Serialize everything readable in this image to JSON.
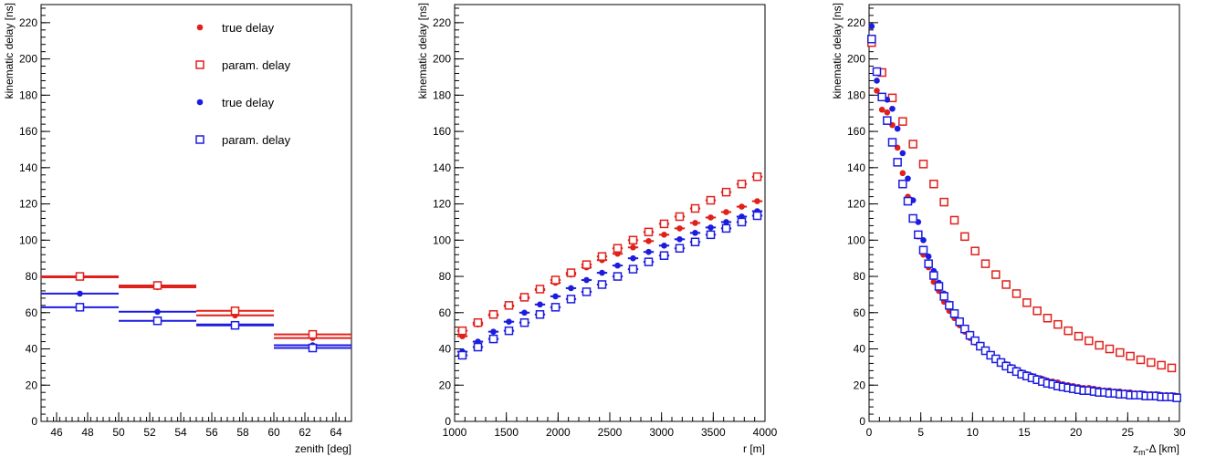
{
  "chart_data": [
    {
      "type": "scatter",
      "xlabel": "zenith [deg]",
      "ylabel": "kinematic delay [ns]",
      "xlim": [
        45,
        65
      ],
      "ylim": [
        0,
        230
      ],
      "xticks": [
        46,
        48,
        50,
        52,
        54,
        56,
        58,
        60,
        62,
        64
      ],
      "yticks": [
        0,
        20,
        40,
        60,
        80,
        100,
        120,
        140,
        160,
        180,
        200,
        220
      ],
      "grid": false,
      "legend_position": "top-right",
      "legend": [
        {
          "label": "true delay",
          "color": "#e0201b",
          "marker": "circle"
        },
        {
          "label": "param. delay",
          "color": "#e0201b",
          "marker": "open-square"
        },
        {
          "label": "true delay",
          "color": "#1c1ce0",
          "marker": "circle"
        },
        {
          "label": "param. delay",
          "color": "#1c1ce0",
          "marker": "open-square"
        }
      ],
      "series": [
        {
          "color": "#e0201b",
          "marker": "circle",
          "x": [
            47.5,
            52.5,
            57.5,
            62.5
          ],
          "xerr": 2.5,
          "y": [
            79.5,
            74,
            58.5,
            46
          ]
        },
        {
          "color": "#e0201b",
          "marker": "open-square",
          "x": [
            47.5,
            52.5,
            57.5,
            62.5
          ],
          "xerr": 2.5,
          "y": [
            80,
            75,
            61,
            48
          ]
        },
        {
          "color": "#1c1ce0",
          "marker": "circle",
          "x": [
            47.5,
            52.5,
            57.5,
            62.5
          ],
          "xerr": 2.5,
          "y": [
            70.5,
            60.5,
            53.5,
            42
          ]
        },
        {
          "color": "#1c1ce0",
          "marker": "open-square",
          "x": [
            47.5,
            52.5,
            57.5,
            62.5
          ],
          "xerr": 2.5,
          "y": [
            63,
            55.5,
            53,
            40.5
          ]
        }
      ]
    },
    {
      "type": "scatter",
      "xlabel": "r [m]",
      "ylabel": "kinematic delay [ns]",
      "xlim": [
        1000,
        4000
      ],
      "ylim": [
        0,
        230
      ],
      "xticks": [
        1000,
        1500,
        2000,
        2500,
        3000,
        3500,
        4000
      ],
      "yticks": [
        0,
        20,
        40,
        60,
        80,
        100,
        120,
        140,
        160,
        180,
        200,
        220
      ],
      "grid": false,
      "series": [
        {
          "color": "#e0201b",
          "marker": "circle",
          "xerr": 50,
          "x": [
            1075,
            1225,
            1375,
            1525,
            1675,
            1825,
            1975,
            2125,
            2275,
            2425,
            2575,
            2725,
            2875,
            3025,
            3175,
            3325,
            3475,
            3625,
            3775,
            3925
          ],
          "y": [
            47,
            53.5,
            58.5,
            63.5,
            68,
            72.5,
            76.5,
            81,
            85,
            89,
            92.5,
            96,
            99.5,
            103,
            106.5,
            109.5,
            112.5,
            115.5,
            118.5,
            121.5
          ]
        },
        {
          "color": "#e0201b",
          "marker": "open-square",
          "xerr": 50,
          "x": [
            1075,
            1225,
            1375,
            1525,
            1675,
            1825,
            1975,
            2125,
            2275,
            2425,
            2575,
            2725,
            2875,
            3025,
            3175,
            3325,
            3475,
            3625,
            3775,
            3925
          ],
          "y": [
            50,
            54.5,
            59,
            64,
            68.5,
            73,
            78,
            82,
            86.5,
            91,
            95.5,
            100,
            104.5,
            109,
            113,
            117.5,
            122,
            126.5,
            131,
            135
          ]
        },
        {
          "color": "#1c1ce0",
          "marker": "circle",
          "xerr": 50,
          "x": [
            1075,
            1225,
            1375,
            1525,
            1675,
            1825,
            1975,
            2125,
            2275,
            2425,
            2575,
            2725,
            2875,
            3025,
            3175,
            3325,
            3475,
            3625,
            3775,
            3925
          ],
          "y": [
            38.5,
            44,
            49.5,
            55,
            60,
            64.5,
            69,
            73.5,
            78,
            82,
            86,
            90,
            93.5,
            97,
            100.5,
            104,
            107,
            110,
            113,
            116
          ]
        },
        {
          "color": "#1c1ce0",
          "marker": "open-square",
          "xerr": 50,
          "x": [
            1075,
            1225,
            1375,
            1525,
            1675,
            1825,
            1975,
            2125,
            2275,
            2425,
            2575,
            2725,
            2875,
            3025,
            3175,
            3325,
            3475,
            3625,
            3775,
            3925
          ],
          "y": [
            36.5,
            41,
            45.5,
            50,
            54.5,
            59,
            63,
            67.5,
            71.5,
            75.5,
            80,
            84,
            88,
            91.5,
            95.5,
            99,
            103,
            106.5,
            110,
            113.5
          ]
        }
      ]
    },
    {
      "type": "scatter",
      "xlabel_main": "z",
      "xlabel_sub": "m",
      "xlabel_rest": "-Δ [km]",
      "ylabel": "kinematic delay [ns]",
      "xlim": [
        0,
        30
      ],
      "ylim": [
        0,
        230
      ],
      "xticks": [
        0,
        5,
        10,
        15,
        20,
        25,
        30
      ],
      "yticks": [
        0,
        20,
        40,
        60,
        80,
        100,
        120,
        140,
        160,
        180,
        200,
        220
      ],
      "grid": false,
      "series": [
        {
          "color": "#e0201b",
          "marker": "circle",
          "x": [
            0.25,
            0.75,
            1.25,
            1.75,
            2.25,
            2.75,
            3.25,
            3.75,
            4.25,
            4.75,
            5.25,
            5.75,
            6.25,
            6.75,
            7.25,
            7.75,
            8.25,
            8.75,
            9.25,
            9.75,
            10.25,
            10.75,
            11.25,
            11.75,
            12.25,
            12.75,
            13.25,
            13.75,
            14.25,
            14.75,
            15.25,
            15.75,
            16.25,
            16.75,
            17.25,
            17.75,
            18.25,
            18.75,
            19.25,
            19.75,
            20.25,
            20.75,
            21.25,
            21.75,
            22.25,
            22.75,
            23.25,
            23.75,
            24.25,
            24.75,
            25.25,
            25.75,
            26.25,
            26.75,
            27.25,
            27.75,
            28.25,
            28.75,
            29.25,
            29.75
          ],
          "y": [
            210,
            182.5,
            172,
            170.5,
            163.5,
            151,
            137,
            124,
            112,
            102,
            92,
            85,
            77,
            72,
            66,
            61,
            57,
            53,
            49.5,
            46,
            43.5,
            41,
            38.5,
            36.5,
            34.5,
            32.5,
            31,
            29.5,
            28,
            27,
            26,
            25,
            24,
            23.5,
            22.5,
            22,
            21.5,
            20.5,
            20,
            19.5,
            19,
            18.5,
            18.5,
            18,
            17.5,
            17,
            17,
            16.5,
            16.5,
            16,
            16,
            15.5,
            15.5,
            15,
            15,
            15,
            14.5,
            14.5,
            14.5,
            14
          ]
        },
        {
          "color": "#e0201b",
          "marker": "open-square",
          "x": [
            0.25,
            1.25,
            2.25,
            3.25,
            4.25,
            5.25,
            6.25,
            7.25,
            8.25,
            9.25,
            10.25,
            11.25,
            12.25,
            13.25,
            14.25,
            15.25,
            16.25,
            17.25,
            18.25,
            19.25,
            20.25,
            21.25,
            22.25,
            23.25,
            24.25,
            25.25,
            26.25,
            27.25,
            28.25,
            29.25
          ],
          "y": [
            209,
            192.5,
            178.5,
            165.5,
            153,
            142,
            131,
            121,
            111,
            102,
            94,
            87,
            81,
            75.5,
            70.5,
            65.5,
            61,
            57,
            53.5,
            50,
            47,
            44.5,
            42,
            40,
            38,
            36,
            34,
            32.5,
            31,
            29.5
          ]
        },
        {
          "color": "#1c1ce0",
          "marker": "circle",
          "x": [
            0.25,
            0.75,
            1.25,
            1.75,
            2.25,
            2.75,
            3.25,
            3.75,
            4.25,
            4.75,
            5.25,
            5.75,
            6.25,
            6.75,
            7.25,
            7.75,
            8.25,
            8.75,
            9.25,
            9.75,
            10.25,
            10.75,
            11.25,
            11.75,
            12.25,
            12.75,
            13.25,
            13.75,
            14.25,
            14.75,
            15.25,
            15.75,
            16.25,
            16.75,
            17.25,
            17.75,
            18.25,
            18.75,
            19.25,
            19.75,
            20.25,
            20.75,
            21.25,
            21.75,
            22.25,
            22.75,
            23.25,
            23.75,
            24.25,
            24.75,
            25.25,
            25.75,
            26.25,
            26.75,
            27.25,
            27.75,
            28.25,
            28.75,
            29.25,
            29.75
          ],
          "y": [
            218,
            188,
            179,
            177.5,
            172.5,
            161.5,
            148,
            134,
            122,
            110,
            100,
            91,
            83,
            76.5,
            70.5,
            65,
            60,
            55.5,
            51.5,
            48,
            45,
            42,
            39.5,
            37,
            35,
            33,
            31.5,
            30,
            28.5,
            27,
            26,
            25,
            24,
            23,
            22,
            21.5,
            20.5,
            20,
            19.5,
            19,
            18.5,
            18,
            17.5,
            17.5,
            17,
            16.5,
            16.5,
            16,
            16,
            15.5,
            15.5,
            15,
            15,
            15,
            14.5,
            14.5,
            14.5,
            14,
            14,
            14
          ]
        },
        {
          "color": "#1c1ce0",
          "marker": "open-square",
          "x": [
            0.25,
            0.75,
            1.25,
            1.75,
            2.25,
            2.75,
            3.25,
            3.75,
            4.25,
            4.75,
            5.25,
            5.75,
            6.25,
            6.75,
            7.25,
            7.75,
            8.25,
            8.75,
            9.25,
            9.75,
            10.25,
            10.75,
            11.25,
            11.75,
            12.25,
            12.75,
            13.25,
            13.75,
            14.25,
            14.75,
            15.25,
            15.75,
            16.25,
            16.75,
            17.25,
            17.75,
            18.25,
            18.75,
            19.25,
            19.75,
            20.25,
            20.75,
            21.25,
            21.75,
            22.25,
            22.75,
            23.25,
            23.75,
            24.25,
            24.75,
            25.25,
            25.75,
            26.25,
            26.75,
            27.25,
            27.75,
            28.25,
            28.75,
            29.25,
            29.75
          ],
          "y": [
            211,
            193,
            179,
            166,
            154,
            143,
            131,
            121.5,
            112,
            103,
            94.5,
            87,
            80.5,
            74.5,
            69,
            64,
            59.5,
            55,
            51,
            47.5,
            44.5,
            41.5,
            39,
            36.5,
            34.5,
            32.5,
            30.5,
            29,
            27.5,
            26,
            25,
            24,
            23,
            22,
            21,
            20.5,
            19.5,
            19,
            18.5,
            18,
            17.5,
            17,
            17,
            16.5,
            16,
            16,
            15.5,
            15.5,
            15,
            15,
            14.5,
            14.5,
            14.5,
            14,
            14,
            14,
            13.5,
            13.5,
            13.5,
            13
          ]
        }
      ]
    }
  ]
}
